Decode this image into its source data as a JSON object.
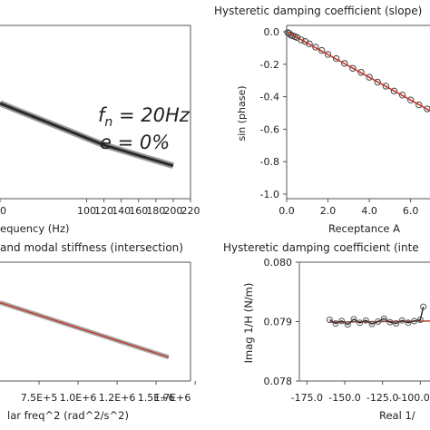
{
  "chart_data": [
    {
      "id": "p1",
      "type": "line",
      "title": "",
      "xlabel": "equency (Hz)",
      "ylabel": "",
      "xlim": [
        0,
        220
      ],
      "ylim": [
        0,
        1
      ],
      "xticks": [
        "0",
        "100",
        "120",
        "140",
        "160",
        "180",
        "200",
        "220"
      ],
      "yticks": [],
      "series": [
        {
          "x": [
            0,
            20,
            40,
            60,
            80,
            100,
            120,
            140,
            160,
            180,
            200
          ],
          "y": [
            0.55,
            0.51,
            0.47,
            0.43,
            0.39,
            0.35,
            0.31,
            0.28,
            0.25,
            0.22,
            0.19
          ],
          "color": "#444444"
        }
      ],
      "annotations": {
        "fn_symbol": "f",
        "fn_sub": "n",
        "fn_eq": " = ",
        "fn_val": "20Hz",
        "e_line": "e = 0%"
      }
    },
    {
      "id": "p2",
      "type": "scatter",
      "title": "Hysteretic damping coefficient (slope)",
      "xlabel": "Receptance A",
      "ylabel": "sin (phase)",
      "xlim": [
        0,
        7.2
      ],
      "ylim": [
        -1.05,
        0.05
      ],
      "xticks": [
        "0.0",
        "2.0",
        "4.0",
        "6.0"
      ],
      "yticks": [
        "0.0",
        "-0.2",
        "-0.4",
        "-0.6",
        "-0.8",
        "-1.0"
      ],
      "ytick_values": [
        0,
        -0.2,
        -0.4,
        -0.6,
        -0.8,
        -1.0
      ],
      "xtick_values": [
        0,
        2,
        4,
        6
      ],
      "points": [
        [
          0.05,
          -0.005
        ],
        [
          0.12,
          -0.01
        ],
        [
          0.2,
          -0.02
        ],
        [
          0.3,
          -0.025
        ],
        [
          0.4,
          -0.03
        ],
        [
          0.5,
          -0.035
        ],
        [
          0.7,
          -0.05
        ],
        [
          0.9,
          -0.06
        ],
        [
          1.1,
          -0.075
        ],
        [
          1.4,
          -0.095
        ],
        [
          1.7,
          -0.115
        ],
        [
          2.0,
          -0.14
        ],
        [
          2.4,
          -0.165
        ],
        [
          2.8,
          -0.195
        ],
        [
          3.2,
          -0.225
        ],
        [
          3.6,
          -0.25
        ],
        [
          4.0,
          -0.28
        ],
        [
          4.4,
          -0.31
        ],
        [
          4.8,
          -0.335
        ],
        [
          5.2,
          -0.365
        ],
        [
          5.6,
          -0.39
        ],
        [
          6.0,
          -0.42
        ],
        [
          6.4,
          -0.45
        ],
        [
          6.8,
          -0.475
        ],
        [
          7.2,
          -0.505
        ]
      ],
      "fit": {
        "x": [
          0,
          7.2
        ],
        "y": [
          0,
          -0.505
        ],
        "color": "#c0392b"
      }
    },
    {
      "id": "p3",
      "type": "line",
      "title": "and modal stiffness (intersection)",
      "xlabel": "lar freq^2 (rad^2/s^2)",
      "ylabel": "",
      "xlim": [
        500000,
        1720000
      ],
      "ylim": [
        0,
        1
      ],
      "xticks": [
        "7.5E+5",
        "1.0E+6",
        "1.2E+6",
        "1.5E+6",
        "1.7E+6"
      ],
      "xtick_values": [
        750000,
        1000000,
        1250000,
        1500000,
        1750000
      ],
      "series": [
        {
          "x": [
            500000,
            1580000
          ],
          "y": [
            0.66,
            0.2
          ],
          "color": "#c0392b"
        }
      ]
    },
    {
      "id": "p4",
      "type": "scatter",
      "title": "Hysteretic damping coefficient (inte",
      "xlabel": "Real 1/",
      "ylabel": "Imag 1/H (N/m)",
      "xlim": [
        -180,
        -90
      ],
      "ylim": [
        0.078,
        0.08
      ],
      "xticks": [
        "-175.0",
        "-150.0",
        "-125.0",
        "-100.0"
      ],
      "xtick_values": [
        -175,
        -150,
        -125,
        -100
      ],
      "yticks": [
        "0.080",
        "0.079",
        "0.078"
      ],
      "ytick_values": [
        0.08,
        0.079,
        0.078
      ],
      "series": [
        {
          "x": [
            -160,
            -156,
            -152,
            -148,
            -144,
            -140,
            -136,
            -132,
            -128,
            -124,
            -120,
            -116,
            -112,
            -108,
            -104,
            -100,
            -98
          ],
          "y": [
            0.07903,
            0.07897,
            0.07901,
            0.07895,
            0.07904,
            0.07898,
            0.07902,
            0.07896,
            0.079,
            0.07905,
            0.07899,
            0.07897,
            0.07902,
            0.07898,
            0.07901,
            0.07903,
            0.07925
          ],
          "color": "#222222"
        }
      ],
      "fit": {
        "x": [
          -160,
          -92
        ],
        "y": [
          0.07899,
          0.07901
        ],
        "color": "#c0392b"
      }
    }
  ]
}
